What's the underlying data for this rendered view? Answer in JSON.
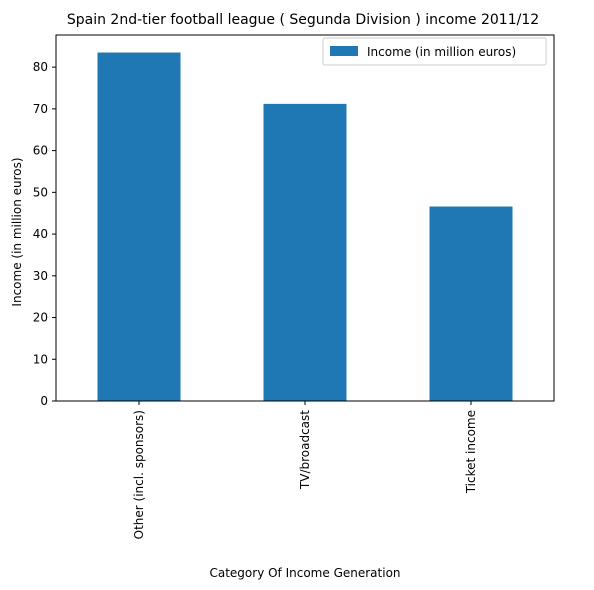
{
  "chart_data": {
    "type": "bar",
    "title": "Spain 2nd-tier football league ( Segunda Division ) income 2011/12",
    "xlabel": "Category Of Income Generation",
    "ylabel": "Income (in million euros)",
    "categories": [
      "Other (incl. sponsors)",
      "TV/broadcast",
      "Ticket income"
    ],
    "series": [
      {
        "name": "Income (in million euros)",
        "values": [
          83.5,
          71.2,
          46.6
        ]
      }
    ],
    "ylim": [
      0,
      87.7
    ],
    "yticks": [
      0,
      10,
      20,
      30,
      40,
      50,
      60,
      70,
      80
    ],
    "legend": "top-right",
    "grid": false,
    "colors": {
      "bar": "#1f77b4"
    }
  }
}
